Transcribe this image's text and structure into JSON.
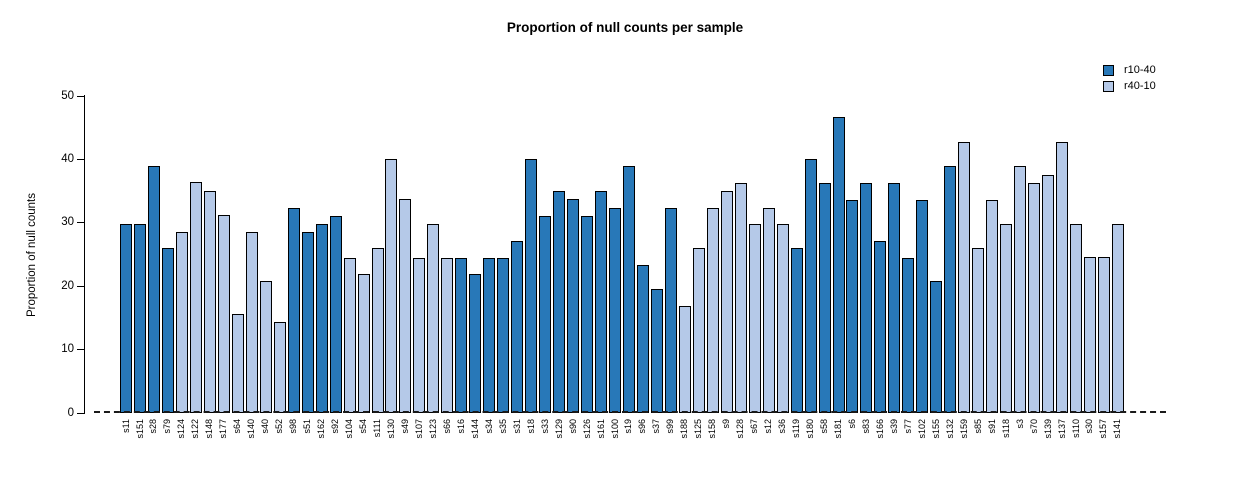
{
  "title": "Proportion of null counts per sample",
  "legend": [
    {
      "label": "r10-40",
      "color": "#2878b8"
    },
    {
      "label": "r40-10",
      "color": "#b5c9e8"
    }
  ],
  "chart_data": {
    "type": "bar",
    "title": "Proportion of null counts per sample",
    "xlabel": "",
    "ylabel": "Proportion of null counts",
    "ylim": [
      0,
      50
    ],
    "yticks": [
      0,
      10,
      20,
      30,
      40,
      50
    ],
    "grid": false,
    "zero_line_style": "dashed",
    "bar_border_color": "#000000",
    "legend_position": "top-right",
    "series": [
      {
        "name": "r10-40",
        "color": "#2878b8"
      },
      {
        "name": "r40-10",
        "color": "#b5c9e8"
      }
    ],
    "series_colors": {
      "r10-40": "#2878b8",
      "r40-10": "#b5c9e8"
    },
    "bars": [
      {
        "label": "s11",
        "value": 29.8,
        "group": "r10-40"
      },
      {
        "label": "s151",
        "value": 29.8,
        "group": "r10-40"
      },
      {
        "label": "s28",
        "value": 39.0,
        "group": "r10-40"
      },
      {
        "label": "s79",
        "value": 26.0,
        "group": "r10-40"
      },
      {
        "label": "s124",
        "value": 28.5,
        "group": "r40-10"
      },
      {
        "label": "s122",
        "value": 36.4,
        "group": "r40-10"
      },
      {
        "label": "s148",
        "value": 35.0,
        "group": "r40-10"
      },
      {
        "label": "s177",
        "value": 31.2,
        "group": "r40-10"
      },
      {
        "label": "s64",
        "value": 15.6,
        "group": "r40-10"
      },
      {
        "label": "s140",
        "value": 28.5,
        "group": "r40-10"
      },
      {
        "label": "s40",
        "value": 20.8,
        "group": "r40-10"
      },
      {
        "label": "s52",
        "value": 14.3,
        "group": "r40-10"
      },
      {
        "label": "s98",
        "value": 32.4,
        "group": "r10-40"
      },
      {
        "label": "s51",
        "value": 28.5,
        "group": "r10-40"
      },
      {
        "label": "s162",
        "value": 29.8,
        "group": "r10-40"
      },
      {
        "label": "s92",
        "value": 31.1,
        "group": "r10-40"
      },
      {
        "label": "s104",
        "value": 24.5,
        "group": "r40-10"
      },
      {
        "label": "s54",
        "value": 22.0,
        "group": "r40-10"
      },
      {
        "label": "s111",
        "value": 26.0,
        "group": "r40-10"
      },
      {
        "label": "s130",
        "value": 40.1,
        "group": "r40-10"
      },
      {
        "label": "s49",
        "value": 33.7,
        "group": "r40-10"
      },
      {
        "label": "s107",
        "value": 24.5,
        "group": "r40-10"
      },
      {
        "label": "s123",
        "value": 29.8,
        "group": "r40-10"
      },
      {
        "label": "s66",
        "value": 24.5,
        "group": "r40-10"
      },
      {
        "label": "s16",
        "value": 24.5,
        "group": "r10-40"
      },
      {
        "label": "s144",
        "value": 22.0,
        "group": "r10-40"
      },
      {
        "label": "s34",
        "value": 24.5,
        "group": "r10-40"
      },
      {
        "label": "s35",
        "value": 24.5,
        "group": "r10-40"
      },
      {
        "label": "s31",
        "value": 27.2,
        "group": "r10-40"
      },
      {
        "label": "s18",
        "value": 40.1,
        "group": "r10-40"
      },
      {
        "label": "s33",
        "value": 31.1,
        "group": "r10-40"
      },
      {
        "label": "s129",
        "value": 35.0,
        "group": "r10-40"
      },
      {
        "label": "s90",
        "value": 33.7,
        "group": "r10-40"
      },
      {
        "label": "s126",
        "value": 31.1,
        "group": "r10-40"
      },
      {
        "label": "s161",
        "value": 35.0,
        "group": "r10-40"
      },
      {
        "label": "s100",
        "value": 32.4,
        "group": "r10-40"
      },
      {
        "label": "s19",
        "value": 39.0,
        "group": "r10-40"
      },
      {
        "label": "s96",
        "value": 23.3,
        "group": "r10-40"
      },
      {
        "label": "s37",
        "value": 19.5,
        "group": "r10-40"
      },
      {
        "label": "s99",
        "value": 32.4,
        "group": "r10-40"
      },
      {
        "label": "s188",
        "value": 16.8,
        "group": "r40-10"
      },
      {
        "label": "s125",
        "value": 26.0,
        "group": "r40-10"
      },
      {
        "label": "s158",
        "value": 32.4,
        "group": "r40-10"
      },
      {
        "label": "s9",
        "value": 35.0,
        "group": "r40-10"
      },
      {
        "label": "s128",
        "value": 36.3,
        "group": "r40-10"
      },
      {
        "label": "s67",
        "value": 29.8,
        "group": "r40-10"
      },
      {
        "label": "s12",
        "value": 32.4,
        "group": "r40-10"
      },
      {
        "label": "s36",
        "value": 29.8,
        "group": "r40-10"
      },
      {
        "label": "s119",
        "value": 26.0,
        "group": "r10-40"
      },
      {
        "label": "s180",
        "value": 40.1,
        "group": "r10-40"
      },
      {
        "label": "s58",
        "value": 36.3,
        "group": "r10-40"
      },
      {
        "label": "s181",
        "value": 46.7,
        "group": "r10-40"
      },
      {
        "label": "s6",
        "value": 33.6,
        "group": "r10-40"
      },
      {
        "label": "s83",
        "value": 36.3,
        "group": "r10-40"
      },
      {
        "label": "s166",
        "value": 27.2,
        "group": "r10-40"
      },
      {
        "label": "s39",
        "value": 36.3,
        "group": "r10-40"
      },
      {
        "label": "s77",
        "value": 24.5,
        "group": "r10-40"
      },
      {
        "label": "s102",
        "value": 33.6,
        "group": "r10-40"
      },
      {
        "label": "s155",
        "value": 20.8,
        "group": "r10-40"
      },
      {
        "label": "s132",
        "value": 38.9,
        "group": "r10-40"
      },
      {
        "label": "s159",
        "value": 42.8,
        "group": "r40-10"
      },
      {
        "label": "s85",
        "value": 26.0,
        "group": "r40-10"
      },
      {
        "label": "s91",
        "value": 33.6,
        "group": "r40-10"
      },
      {
        "label": "s118",
        "value": 29.8,
        "group": "r40-10"
      },
      {
        "label": "s3",
        "value": 38.9,
        "group": "r40-10"
      },
      {
        "label": "s70",
        "value": 36.3,
        "group": "r40-10"
      },
      {
        "label": "s139",
        "value": 37.6,
        "group": "r40-10"
      },
      {
        "label": "s137",
        "value": 42.8,
        "group": "r40-10"
      },
      {
        "label": "s110",
        "value": 29.8,
        "group": "r40-10"
      },
      {
        "label": "s30",
        "value": 24.6,
        "group": "r40-10"
      },
      {
        "label": "s157",
        "value": 24.6,
        "group": "r40-10"
      },
      {
        "label": "s141",
        "value": 29.8,
        "group": "r40-10"
      }
    ]
  }
}
